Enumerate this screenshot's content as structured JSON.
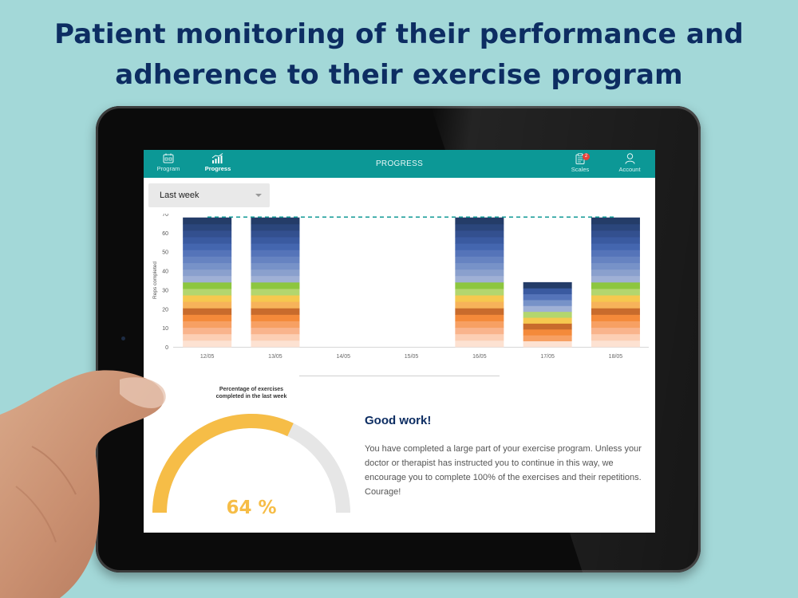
{
  "headline": {
    "line1": "Patient monitoring of their performance and",
    "line2": "adherence to their exercise program"
  },
  "topbar": {
    "title": "PROGRESS",
    "nav_left": [
      {
        "label": "Program",
        "icon": "calendar-icon",
        "active": false
      },
      {
        "label": "Progress",
        "icon": "chart-icon",
        "active": true
      }
    ],
    "nav_right": [
      {
        "label": "Scales",
        "icon": "clipboard-icon",
        "badge": "2"
      },
      {
        "label": "Account",
        "icon": "user-icon"
      }
    ]
  },
  "filter": {
    "selected": "Last week"
  },
  "chart_data": {
    "type": "bar",
    "stacked": true,
    "ylabel": "Reps completed",
    "xlabel": "",
    "ylim": [
      0,
      70
    ],
    "yticks": [
      0,
      10,
      20,
      30,
      40,
      50,
      60,
      70
    ],
    "categories": [
      "12/05",
      "13/05",
      "14/05",
      "15/05",
      "16/05",
      "17/05",
      "18/05"
    ],
    "values": [
      68,
      68,
      0,
      0,
      68,
      34,
      68
    ],
    "target": 68,
    "grid": false,
    "colors": [
      "#fde2d2",
      "#fccfb4",
      "#f9b48c",
      "#f7a063",
      "#f48a3a",
      "#c86b2c",
      "#f7b35a",
      "#f6c84f",
      "#b3d66e",
      "#8dc63f",
      "#9fb0d5",
      "#8aa0cd",
      "#7792c8",
      "#6683c1",
      "#5574b9",
      "#4466af",
      "#3a5aa0",
      "#33508f",
      "#2b467c",
      "#243c68"
    ],
    "colors_short": [
      "#fde2d2",
      "#f7a063",
      "#f48a3a",
      "#c86b2c",
      "#f6c84f",
      "#b3d66e",
      "#9fb0d5",
      "#7792c8",
      "#5574b9",
      "#3a5aa0",
      "#243c68"
    ]
  },
  "gauge": {
    "title_line1": "Percentage of exercises",
    "title_line2": "completed in the last week",
    "percent": 64,
    "value_text": "64 %",
    "fill_color": "#f6bd47",
    "track_color": "#e6e6e6"
  },
  "message": {
    "title": "Good work!",
    "body": "You have completed a large part of your exercise program. Unless your doctor or therapist has instructed you to continue in this way, we encourage you to complete 100% of the exercises and their repetitions. Courage!"
  }
}
